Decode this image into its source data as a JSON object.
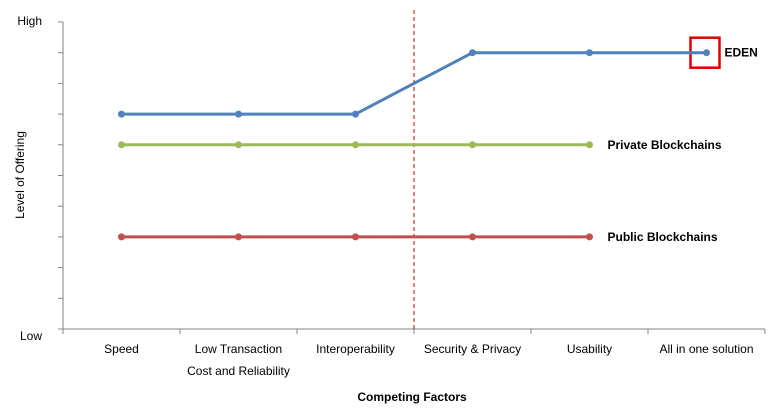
{
  "chart_data": {
    "type": "line",
    "categories": [
      "Speed",
      "Low Transaction\nCost and Reliability",
      "Interoperability",
      "Security & Privacy",
      "Usability",
      "All in one solution"
    ],
    "xlabel": "Competing Factors",
    "ylabel": "Level of Offering",
    "ytick_labels": {
      "high": "High",
      "low": "Low"
    },
    "ylim": [
      0,
      10
    ],
    "grid": false,
    "series": [
      {
        "name": "EDEN",
        "color": "#4F81BD",
        "values": [
          7,
          7,
          7,
          9,
          9,
          9
        ],
        "highlight_last": true
      },
      {
        "name": "Private Blockchains",
        "color": "#9BBB59",
        "values": [
          6,
          6,
          6,
          6,
          6,
          null
        ]
      },
      {
        "name": "Public Blockchains",
        "color": "#C0504D",
        "values": [
          3,
          3,
          3,
          3,
          3,
          null
        ]
      }
    ],
    "annotations": [
      {
        "type": "vertical-dashed-line",
        "between": [
          "Interoperability",
          "Security & Privacy"
        ],
        "color": "#C00000"
      },
      {
        "type": "highlight-box",
        "series": "EDEN",
        "category": "All in one solution",
        "color": "#E00000"
      }
    ]
  }
}
